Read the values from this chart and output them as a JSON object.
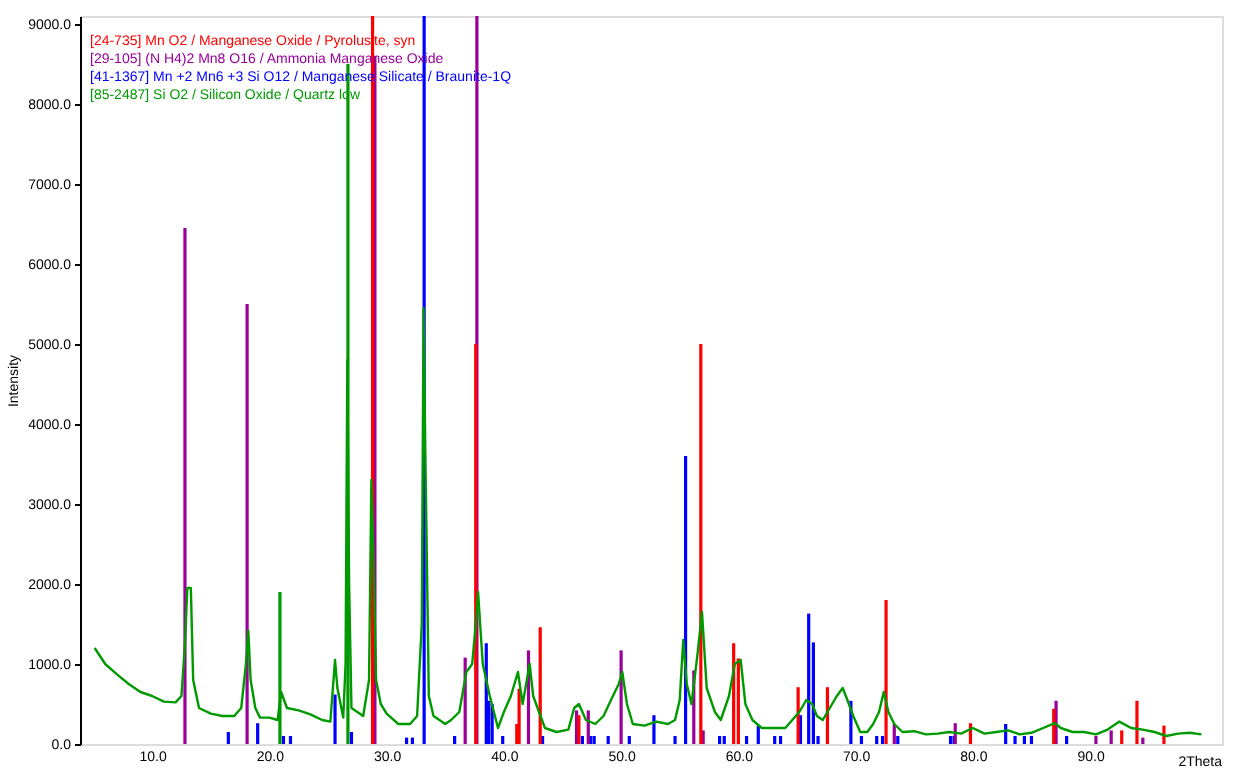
{
  "chart_data": {
    "type": "line",
    "xlabel": "2Theta",
    "ylabel": "Intensity",
    "xlim": [
      4.7,
      100.4
    ],
    "ylim": [
      0,
      9100
    ],
    "xticks": [
      {
        "value": 10,
        "label": "10.0"
      },
      {
        "value": 20,
        "label": "20.0"
      },
      {
        "value": 30,
        "label": "30.0"
      },
      {
        "value": 40,
        "label": "40.0"
      },
      {
        "value": 50,
        "label": "50.0"
      },
      {
        "value": 60,
        "label": "60.0"
      },
      {
        "value": 70,
        "label": "70.0"
      },
      {
        "value": 80,
        "label": "80.0"
      },
      {
        "value": 90,
        "label": "90.0"
      }
    ],
    "yticks": [
      {
        "value": 0,
        "label": "0.0"
      },
      {
        "value": 1000,
        "label": "1000.0"
      },
      {
        "value": 2000,
        "label": "2000.0"
      },
      {
        "value": 3000,
        "label": "3000.0"
      },
      {
        "value": 4000,
        "label": "4000.0"
      },
      {
        "value": 5000,
        "label": "5000.0"
      },
      {
        "value": 6000,
        "label": "6000.0"
      },
      {
        "value": 7000,
        "label": "7000.0"
      },
      {
        "value": 8000,
        "label": "8000.0"
      },
      {
        "value": 9000,
        "label": "9000.0"
      }
    ],
    "grid": false,
    "legend": "top left",
    "marker": "none",
    "line_style": "solid",
    "series": [
      {
        "color": "#009900",
        "x": [
          5.1,
          6.0,
          7.0,
          8.0,
          9.0,
          10.0,
          11.0,
          12.0,
          12.5,
          12.8,
          13.0,
          13.3,
          13.5,
          14.0,
          15.0,
          16.0,
          17.0,
          17.6,
          18.0,
          18.2,
          18.4,
          18.8,
          19.2,
          20.0,
          20.7,
          21.0,
          21.5,
          22.5,
          23.5,
          24.5,
          25.2,
          25.6,
          25.8,
          26.3,
          26.5,
          26.65,
          26.8,
          27.0,
          27.5,
          28.0,
          28.5,
          28.7,
          28.9,
          29.1,
          29.5,
          30.0,
          31.0,
          32.0,
          32.6,
          33.0,
          33.15,
          33.3,
          33.6,
          34.0,
          35.0,
          35.5,
          36.2,
          36.8,
          37.3,
          37.6,
          37.8,
          38.2,
          38.8,
          39.5,
          40.0,
          40.6,
          41.2,
          41.6,
          42.2,
          42.5,
          43.0,
          43.5,
          44.5,
          45.5,
          46.0,
          46.4,
          47.0,
          47.8,
          48.5,
          49.3,
          49.8,
          50.1,
          50.5,
          51.0,
          52.0,
          53.0,
          54.0,
          54.6,
          55.0,
          55.3,
          55.6,
          56.0,
          56.5,
          56.9,
          57.3,
          58.0,
          58.5,
          59.2,
          59.7,
          60.2,
          60.6,
          61.2,
          62.0,
          63.0,
          64.0,
          64.6,
          65.2,
          65.8,
          66.3,
          66.7,
          67.2,
          67.8,
          68.4,
          68.9,
          69.3,
          69.8,
          70.4,
          71.0,
          71.5,
          72.0,
          72.4,
          72.8,
          73.3,
          74.0,
          75.0,
          76.0,
          77.0,
          78.0,
          79.0,
          80.0,
          81.0,
          82.0,
          83.0,
          84.0,
          85.0,
          86.0,
          87.0,
          87.5,
          88.5,
          89.5,
          90.5,
          91.5,
          92.5,
          93.5,
          94.5,
          95.5,
          96.5,
          97.5,
          98.5,
          99.5
        ],
        "values": [
          1200,
          1000,
          870,
          750,
          650,
          600,
          530,
          520,
          600,
          1250,
          1950,
          1950,
          800,
          450,
          380,
          350,
          350,
          450,
          1000,
          1420,
          800,
          450,
          330,
          330,
          300,
          650,
          450,
          420,
          370,
          300,
          280,
          1050,
          700,
          330,
          1000,
          4800,
          2000,
          450,
          400,
          350,
          800,
          3300,
          2200,
          800,
          500,
          380,
          250,
          250,
          350,
          1500,
          5450,
          3650,
          600,
          350,
          250,
          300,
          400,
          900,
          1000,
          1500,
          1900,
          1000,
          600,
          200,
          400,
          600,
          900,
          500,
          1000,
          600,
          400,
          200,
          150,
          180,
          450,
          500,
          300,
          250,
          350,
          600,
          750,
          900,
          500,
          250,
          230,
          280,
          250,
          300,
          550,
          1300,
          750,
          500,
          1100,
          1650,
          700,
          400,
          300,
          600,
          1000,
          1050,
          500,
          300,
          200,
          200,
          200,
          300,
          400,
          550,
          500,
          350,
          300,
          450,
          600,
          700,
          550,
          350,
          150,
          150,
          250,
          400,
          650,
          400,
          250,
          150,
          160,
          120,
          130,
          150,
          130,
          200,
          130,
          150,
          170,
          120,
          140,
          200,
          260,
          200,
          150,
          150,
          120,
          180,
          280,
          200,
          180,
          150,
          100,
          130,
          140,
          120
        ]
      },
      {
        "type": "bar",
        "name": "[24-735]  Mn O2 / Manganese Oxide / Pyrolusite, syn",
        "color": "#ff0000",
        "x": [
          28.8,
          37.6,
          41.1,
          41.3,
          43.1,
          46.4,
          56.8,
          59.6,
          60.0,
          65.1,
          67.6,
          72.6,
          79.8,
          86.9,
          92.7,
          94.0,
          96.3
        ],
        "values": [
          9100,
          5000,
          250,
          690,
          1460,
          360,
          5000,
          1260,
          1070,
          710,
          710,
          1800,
          260,
          440,
          170,
          540,
          230
        ]
      },
      {
        "type": "bar",
        "name": "[29-105]  (N H4)2 Mn8 O16 / Ammonia Manganese Oxide",
        "color": "#990099",
        "x": [
          12.8,
          18.1,
          29.0,
          36.7,
          37.7,
          42.1,
          46.2,
          47.2,
          50.0,
          56.2,
          57.0,
          59.5,
          73.3,
          78.5,
          87.1,
          90.5,
          91.8,
          94.5
        ],
        "values": [
          6450,
          5500,
          8600,
          1080,
          9100,
          1170,
          420,
          420,
          1170,
          920,
          170,
          null,
          250,
          260,
          540,
          100,
          170,
          80
        ]
      },
      {
        "type": "bar",
        "name": "[41-1367]  Mn +2 Mn6 +3 Si O12 / Manganese Silicate / Braunite-1Q",
        "color": "#0000ff",
        "x": [
          16.5,
          19.0,
          21.2,
          21.8,
          25.6,
          27.0,
          31.7,
          32.2,
          33.2,
          35.8,
          38.5,
          38.7,
          39.0,
          39.9,
          42.0,
          42.2,
          43.3,
          46.7,
          47.4,
          47.7,
          48.9,
          50.7,
          52.8,
          54.6,
          55.3,
          55.5,
          58.4,
          58.8,
          60.7,
          61.7,
          63.1,
          63.6,
          65.3,
          66.0,
          66.4,
          66.8,
          69.6,
          70.5,
          71.8,
          72.3,
          73.6,
          78.1,
          78.4,
          82.8,
          83.6,
          84.4,
          85.0,
          88.0
        ],
        "values": [
          150,
          260,
          100,
          100,
          620,
          150,
          80,
          80,
          9100,
          100,
          1260,
          540,
          500,
          100,
          null,
          null,
          100,
          100,
          100,
          100,
          100,
          100,
          360,
          100,
          null,
          3600,
          100,
          100,
          100,
          230,
          100,
          100,
          360,
          1630,
          1270,
          100,
          540,
          100,
          100,
          100,
          100,
          100,
          100,
          250,
          100,
          100,
          100,
          100
        ]
      },
      {
        "type": "bar",
        "name": "[85-2487]  Si O2 / Silicon Oxide / Quartz low",
        "color": "#009900",
        "x": [
          20.9,
          26.7
        ],
        "values": [
          1900,
          8500
        ]
      }
    ]
  }
}
